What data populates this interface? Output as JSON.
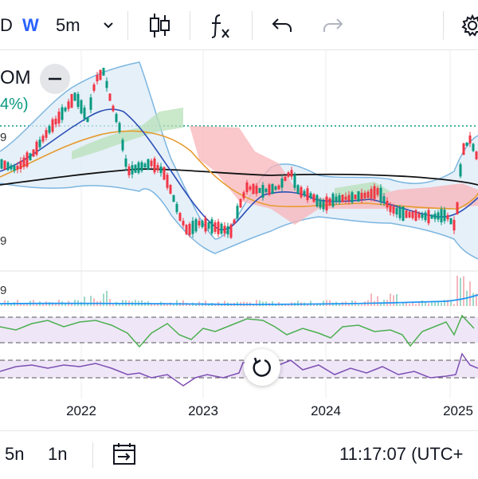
{
  "toolbar": {
    "interval_partial": "D",
    "week_label": "W",
    "interval_label": "5m",
    "chevron": "chevron-down-icon",
    "candles": "candlestick-icon",
    "indicators": "function-icon",
    "undo": "undo-icon",
    "redo": "redo-icon",
    "settings": "gear-icon"
  },
  "legend": {
    "symbol_partial": "OM",
    "change_partial": "4%)"
  },
  "price_scale_partial": [
    "9",
    "9",
    "9"
  ],
  "x_axis": [
    "2022",
    "2023",
    "2024",
    "2025"
  ],
  "bottombar": {
    "range1": "5n",
    "range2": "1n",
    "date_range_icon": "calendar-range-icon",
    "time": "11:17:07 (UTC+"
  },
  "colors": {
    "up": "#089981",
    "down": "#f23645",
    "bb": "#7cb6e0",
    "bb_fill": "#dbeaf7",
    "ma_blue": "#2c4fb6",
    "ma_orange": "#e69b2f",
    "ma_black": "#111111",
    "cloud_red": "#f8b4b8",
    "cloud_green": "#b8e0b8",
    "osc1": "#4caf50",
    "osc2": "#7e4fb3",
    "osc_bg": "#efe7f8",
    "volume": "#2196f3"
  }
}
